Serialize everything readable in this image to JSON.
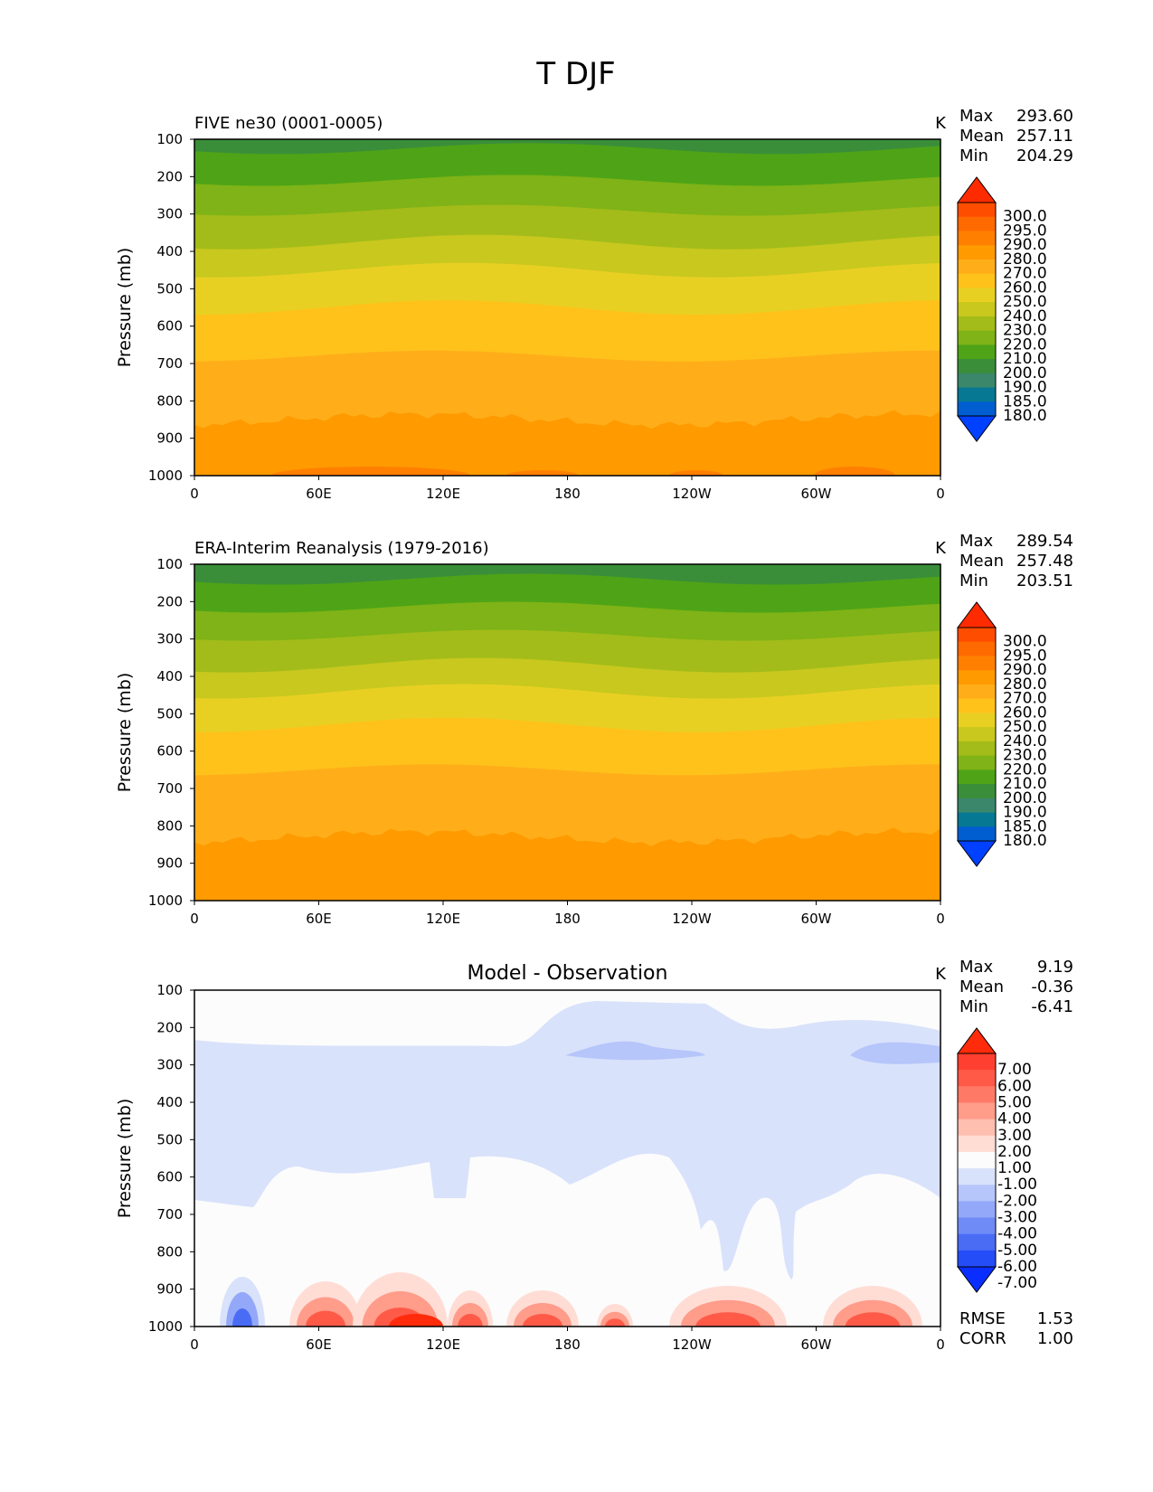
{
  "figure": {
    "title": "T DJF"
  },
  "chart_data": [
    {
      "type": "contour",
      "title": "FIVE ne30 (0001-0005)",
      "units": "K",
      "ylabel": "Pressure (mb)",
      "xlabel": "",
      "x_ticks": [
        "0",
        "60E",
        "120E",
        "180",
        "120W",
        "60W",
        "0"
      ],
      "y_ticks": [
        "100",
        "200",
        "300",
        "400",
        "500",
        "600",
        "700",
        "800",
        "900",
        "1000"
      ],
      "ylim": [
        1000,
        100
      ],
      "stats": [
        {
          "label": "Max",
          "value": "293.60"
        },
        {
          "label": "Mean",
          "value": "257.11"
        },
        {
          "label": "Min",
          "value": "204.29"
        }
      ],
      "colorbar": {
        "labels": [
          "300.0",
          "295.0",
          "290.0",
          "280.0",
          "270.0",
          "260.0",
          "250.0",
          "240.0",
          "230.0",
          "220.0",
          "210.0",
          "200.0",
          "190.0",
          "185.0",
          "180.0"
        ],
        "colors": [
          "#ff2b00",
          "#ff4d00",
          "#ff6a00",
          "#ff8000",
          "#ff9a00",
          "#ffae1a",
          "#ffc21a",
          "#e8d023",
          "#c8c81e",
          "#a3bc19",
          "#7fb317",
          "#4ea416",
          "#3a8e3a",
          "#3a876b",
          "#067894",
          "#005ed1",
          "#0040ff"
        ]
      },
      "bands": [
        {
          "range": "100-125",
          "color": "#3a8e3a"
        },
        {
          "range": "125-210",
          "color": "#4ea416"
        },
        {
          "range": "210-290",
          "color": "#7fb317"
        },
        {
          "range": "290-375",
          "color": "#a3bc19"
        },
        {
          "range": "375-450",
          "color": "#c8c81e"
        },
        {
          "range": "450-550",
          "color": "#e8d023"
        },
        {
          "range": "550-680",
          "color": "#ffc21a"
        },
        {
          "range": "680-850",
          "color": "#ffae1a"
        },
        {
          "range": "850-1000",
          "color": "#ff9a00"
        }
      ]
    },
    {
      "type": "contour",
      "title": "ERA-Interim Reanalysis (1979-2016)",
      "units": "K",
      "ylabel": "Pressure (mb)",
      "xlabel": "",
      "x_ticks": [
        "0",
        "60E",
        "120E",
        "180",
        "120W",
        "60W",
        "0"
      ],
      "y_ticks": [
        "100",
        "200",
        "300",
        "400",
        "500",
        "600",
        "700",
        "800",
        "900",
        "1000"
      ],
      "ylim": [
        1000,
        100
      ],
      "stats": [
        {
          "label": "Max",
          "value": "289.54"
        },
        {
          "label": "Mean",
          "value": "257.48"
        },
        {
          "label": "Min",
          "value": "203.51"
        }
      ],
      "colorbar": {
        "labels": [
          "300.0",
          "295.0",
          "290.0",
          "280.0",
          "270.0",
          "260.0",
          "250.0",
          "240.0",
          "230.0",
          "220.0",
          "210.0",
          "200.0",
          "190.0",
          "185.0",
          "180.0"
        ],
        "colors": [
          "#ff2b00",
          "#ff4d00",
          "#ff6a00",
          "#ff8000",
          "#ff9a00",
          "#ffae1a",
          "#ffc21a",
          "#e8d023",
          "#c8c81e",
          "#a3bc19",
          "#7fb317",
          "#4ea416",
          "#3a8e3a",
          "#3a876b",
          "#067894",
          "#005ed1",
          "#0040ff"
        ]
      },
      "bands": [
        {
          "range": "100-140",
          "color": "#3a8e3a"
        },
        {
          "range": "140-215",
          "color": "#4ea416"
        },
        {
          "range": "215-290",
          "color": "#7fb317"
        },
        {
          "range": "290-370",
          "color": "#a3bc19"
        },
        {
          "range": "370-440",
          "color": "#c8c81e"
        },
        {
          "range": "440-530",
          "color": "#e8d023"
        },
        {
          "range": "530-650",
          "color": "#ffc21a"
        },
        {
          "range": "650-830",
          "color": "#ffae1a"
        },
        {
          "range": "830-1000",
          "color": "#ff9a00"
        }
      ]
    },
    {
      "type": "contour",
      "title": "Model - Observation",
      "units": "K",
      "ylabel": "Pressure (mb)",
      "xlabel": "",
      "x_ticks": [
        "0",
        "60E",
        "120E",
        "180",
        "120W",
        "60W",
        "0"
      ],
      "y_ticks": [
        "100",
        "200",
        "300",
        "400",
        "500",
        "600",
        "700",
        "800",
        "900",
        "1000"
      ],
      "ylim": [
        1000,
        100
      ],
      "stats": [
        {
          "label": "Max",
          "value": "9.19"
        },
        {
          "label": "Mean",
          "value": "-0.36"
        },
        {
          "label": "Min",
          "value": "-6.41"
        }
      ],
      "extra_stats": [
        {
          "label": "RMSE",
          "value": "1.53"
        },
        {
          "label": "CORR",
          "value": "1.00"
        }
      ],
      "colorbar": {
        "labels": [
          "7.00",
          "6.00",
          "5.00",
          "4.00",
          "3.00",
          "2.00",
          "1.00",
          "-1.00",
          "-2.00",
          "-3.00",
          "-4.00",
          "-5.00",
          "-6.00",
          "-7.00"
        ],
        "colors": [
          "#ff2b0a",
          "#ff4030",
          "#ff5a48",
          "#ff7a66",
          "#ff9c8a",
          "#ffbfb0",
          "#ffddd5",
          "#fcfcfc",
          "#d9e2fb",
          "#b6c5fa",
          "#93a8f8",
          "#6f8bf6",
          "#4a6cf5",
          "#244df8",
          "#0a2eff"
        ]
      },
      "regions": [
        {
          "name": "near-zero",
          "color": "#fcfcfc"
        },
        {
          "name": "cool-upper",
          "color": "#d9e2fb"
        },
        {
          "name": "cool-core",
          "color": "#b6c5fa"
        },
        {
          "name": "warm-surface",
          "color": "#ff7a66"
        },
        {
          "name": "cold-surface",
          "color": "#4a6cf5"
        }
      ]
    }
  ]
}
